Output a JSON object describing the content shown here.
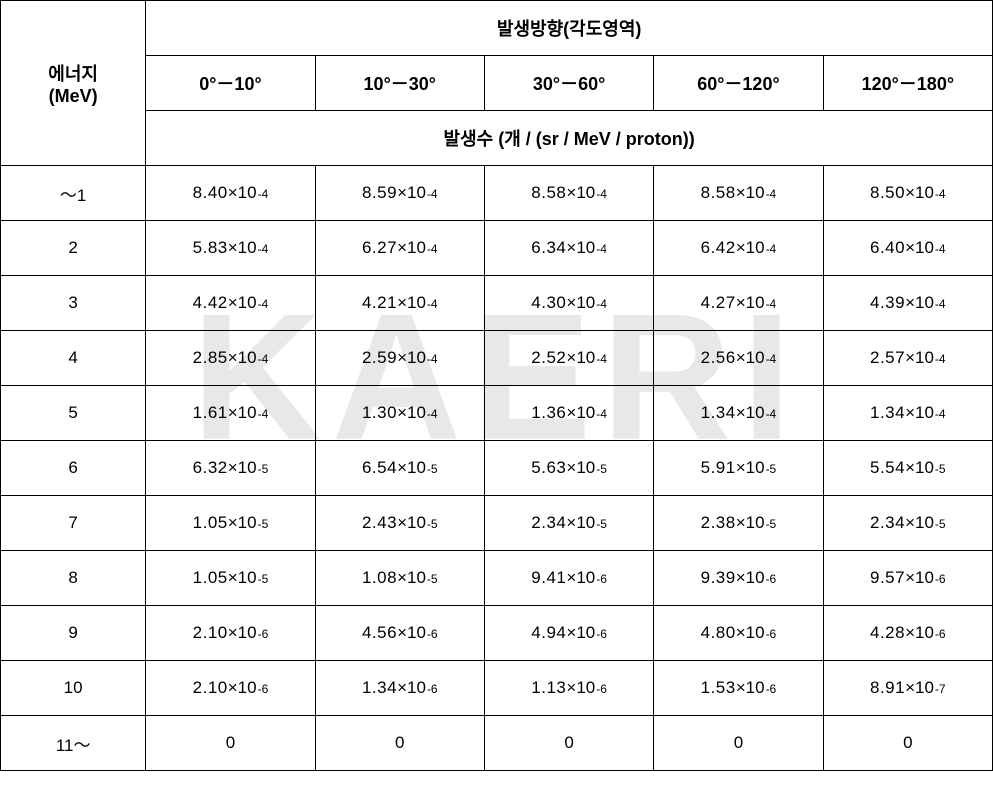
{
  "header": {
    "energy_label_line1": "에너지",
    "energy_label_line2": "(MeV)",
    "direction_label": "발생방향(각도영역)",
    "angle_cols": [
      "0°－10°",
      "10°－30°",
      "30°－60°",
      "60°－120°",
      "120°－180°"
    ],
    "count_label": "발생수 (개 / (sr / MeV / proton))"
  },
  "rows": [
    {
      "energy": "～1",
      "cells": [
        {
          "b": "8.40",
          "e": "-4"
        },
        {
          "b": "8.59",
          "e": "-4"
        },
        {
          "b": "8.58",
          "e": "-4"
        },
        {
          "b": "8.58",
          "e": "-4"
        },
        {
          "b": "8.50",
          "e": "-4"
        }
      ]
    },
    {
      "energy": "2",
      "cells": [
        {
          "b": "5.83",
          "e": "-4"
        },
        {
          "b": "6.27",
          "e": "-4"
        },
        {
          "b": "6.34",
          "e": "-4"
        },
        {
          "b": "6.42",
          "e": "-4"
        },
        {
          "b": "6.40",
          "e": "-4"
        }
      ]
    },
    {
      "energy": "3",
      "cells": [
        {
          "b": "4.42",
          "e": "-4"
        },
        {
          "b": "4.21",
          "e": "-4"
        },
        {
          "b": "4.30",
          "e": "-4"
        },
        {
          "b": "4.27",
          "e": "-4"
        },
        {
          "b": "4.39",
          "e": "-4"
        }
      ]
    },
    {
      "energy": "4",
      "cells": [
        {
          "b": "2.85",
          "e": "-4"
        },
        {
          "b": "2.59",
          "e": "-4"
        },
        {
          "b": "2.52",
          "e": "-4"
        },
        {
          "b": "2.56",
          "e": "-4"
        },
        {
          "b": "2.57",
          "e": "-4"
        }
      ]
    },
    {
      "energy": "5",
      "cells": [
        {
          "b": "1.61",
          "e": "-4"
        },
        {
          "b": "1.30",
          "e": "-4"
        },
        {
          "b": "1.36",
          "e": "-4"
        },
        {
          "b": "1.34",
          "e": "-4"
        },
        {
          "b": "1.34",
          "e": "-4"
        }
      ]
    },
    {
      "energy": "6",
      "cells": [
        {
          "b": "6.32",
          "e": "-5"
        },
        {
          "b": "6.54",
          "e": "-5"
        },
        {
          "b": "5.63",
          "e": "-5"
        },
        {
          "b": "5.91",
          "e": "-5"
        },
        {
          "b": "5.54",
          "e": "-5"
        }
      ]
    },
    {
      "energy": "7",
      "cells": [
        {
          "b": "1.05",
          "e": "-5"
        },
        {
          "b": "2.43",
          "e": "-5"
        },
        {
          "b": "2.34",
          "e": "-5"
        },
        {
          "b": "2.38",
          "e": "-5"
        },
        {
          "b": "2.34",
          "e": "-5"
        }
      ]
    },
    {
      "energy": "8",
      "cells": [
        {
          "b": "1.05",
          "e": "-5"
        },
        {
          "b": "1.08",
          "e": "-5"
        },
        {
          "b": "9.41",
          "e": "-6"
        },
        {
          "b": "9.39",
          "e": "-6"
        },
        {
          "b": "9.57",
          "e": "-6"
        }
      ]
    },
    {
      "energy": "9",
      "cells": [
        {
          "b": "2.10",
          "e": "-6"
        },
        {
          "b": "4.56",
          "e": "-6"
        },
        {
          "b": "4.94",
          "e": "-6"
        },
        {
          "b": "4.80",
          "e": "-6"
        },
        {
          "b": "4.28",
          "e": "-6"
        }
      ]
    },
    {
      "energy": "10",
      "cells": [
        {
          "b": "2.10",
          "e": "-6"
        },
        {
          "b": "1.34",
          "e": "-6"
        },
        {
          "b": "1.13",
          "e": "-6"
        },
        {
          "b": "1.53",
          "e": "-6"
        },
        {
          "b": "8.91",
          "e": "-7"
        }
      ]
    },
    {
      "energy": "11～",
      "cells": [
        {
          "z": "0"
        },
        {
          "z": "0"
        },
        {
          "z": "0"
        },
        {
          "z": "0"
        },
        {
          "z": "0"
        }
      ]
    }
  ],
  "style": {
    "border_color": "#000000",
    "background_color": "#ffffff",
    "text_color": "#000000",
    "watermark_color": "#e8e8e8",
    "font_size_header": 18,
    "font_size_cell": 17,
    "font_size_exp": 12
  }
}
